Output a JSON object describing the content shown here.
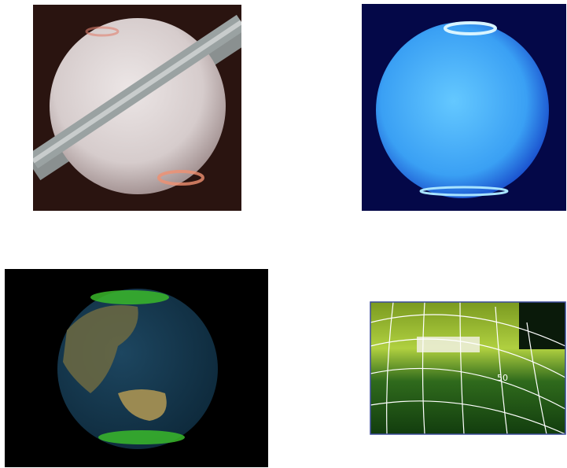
{
  "map_panel": {
    "grid_label": "50"
  }
}
